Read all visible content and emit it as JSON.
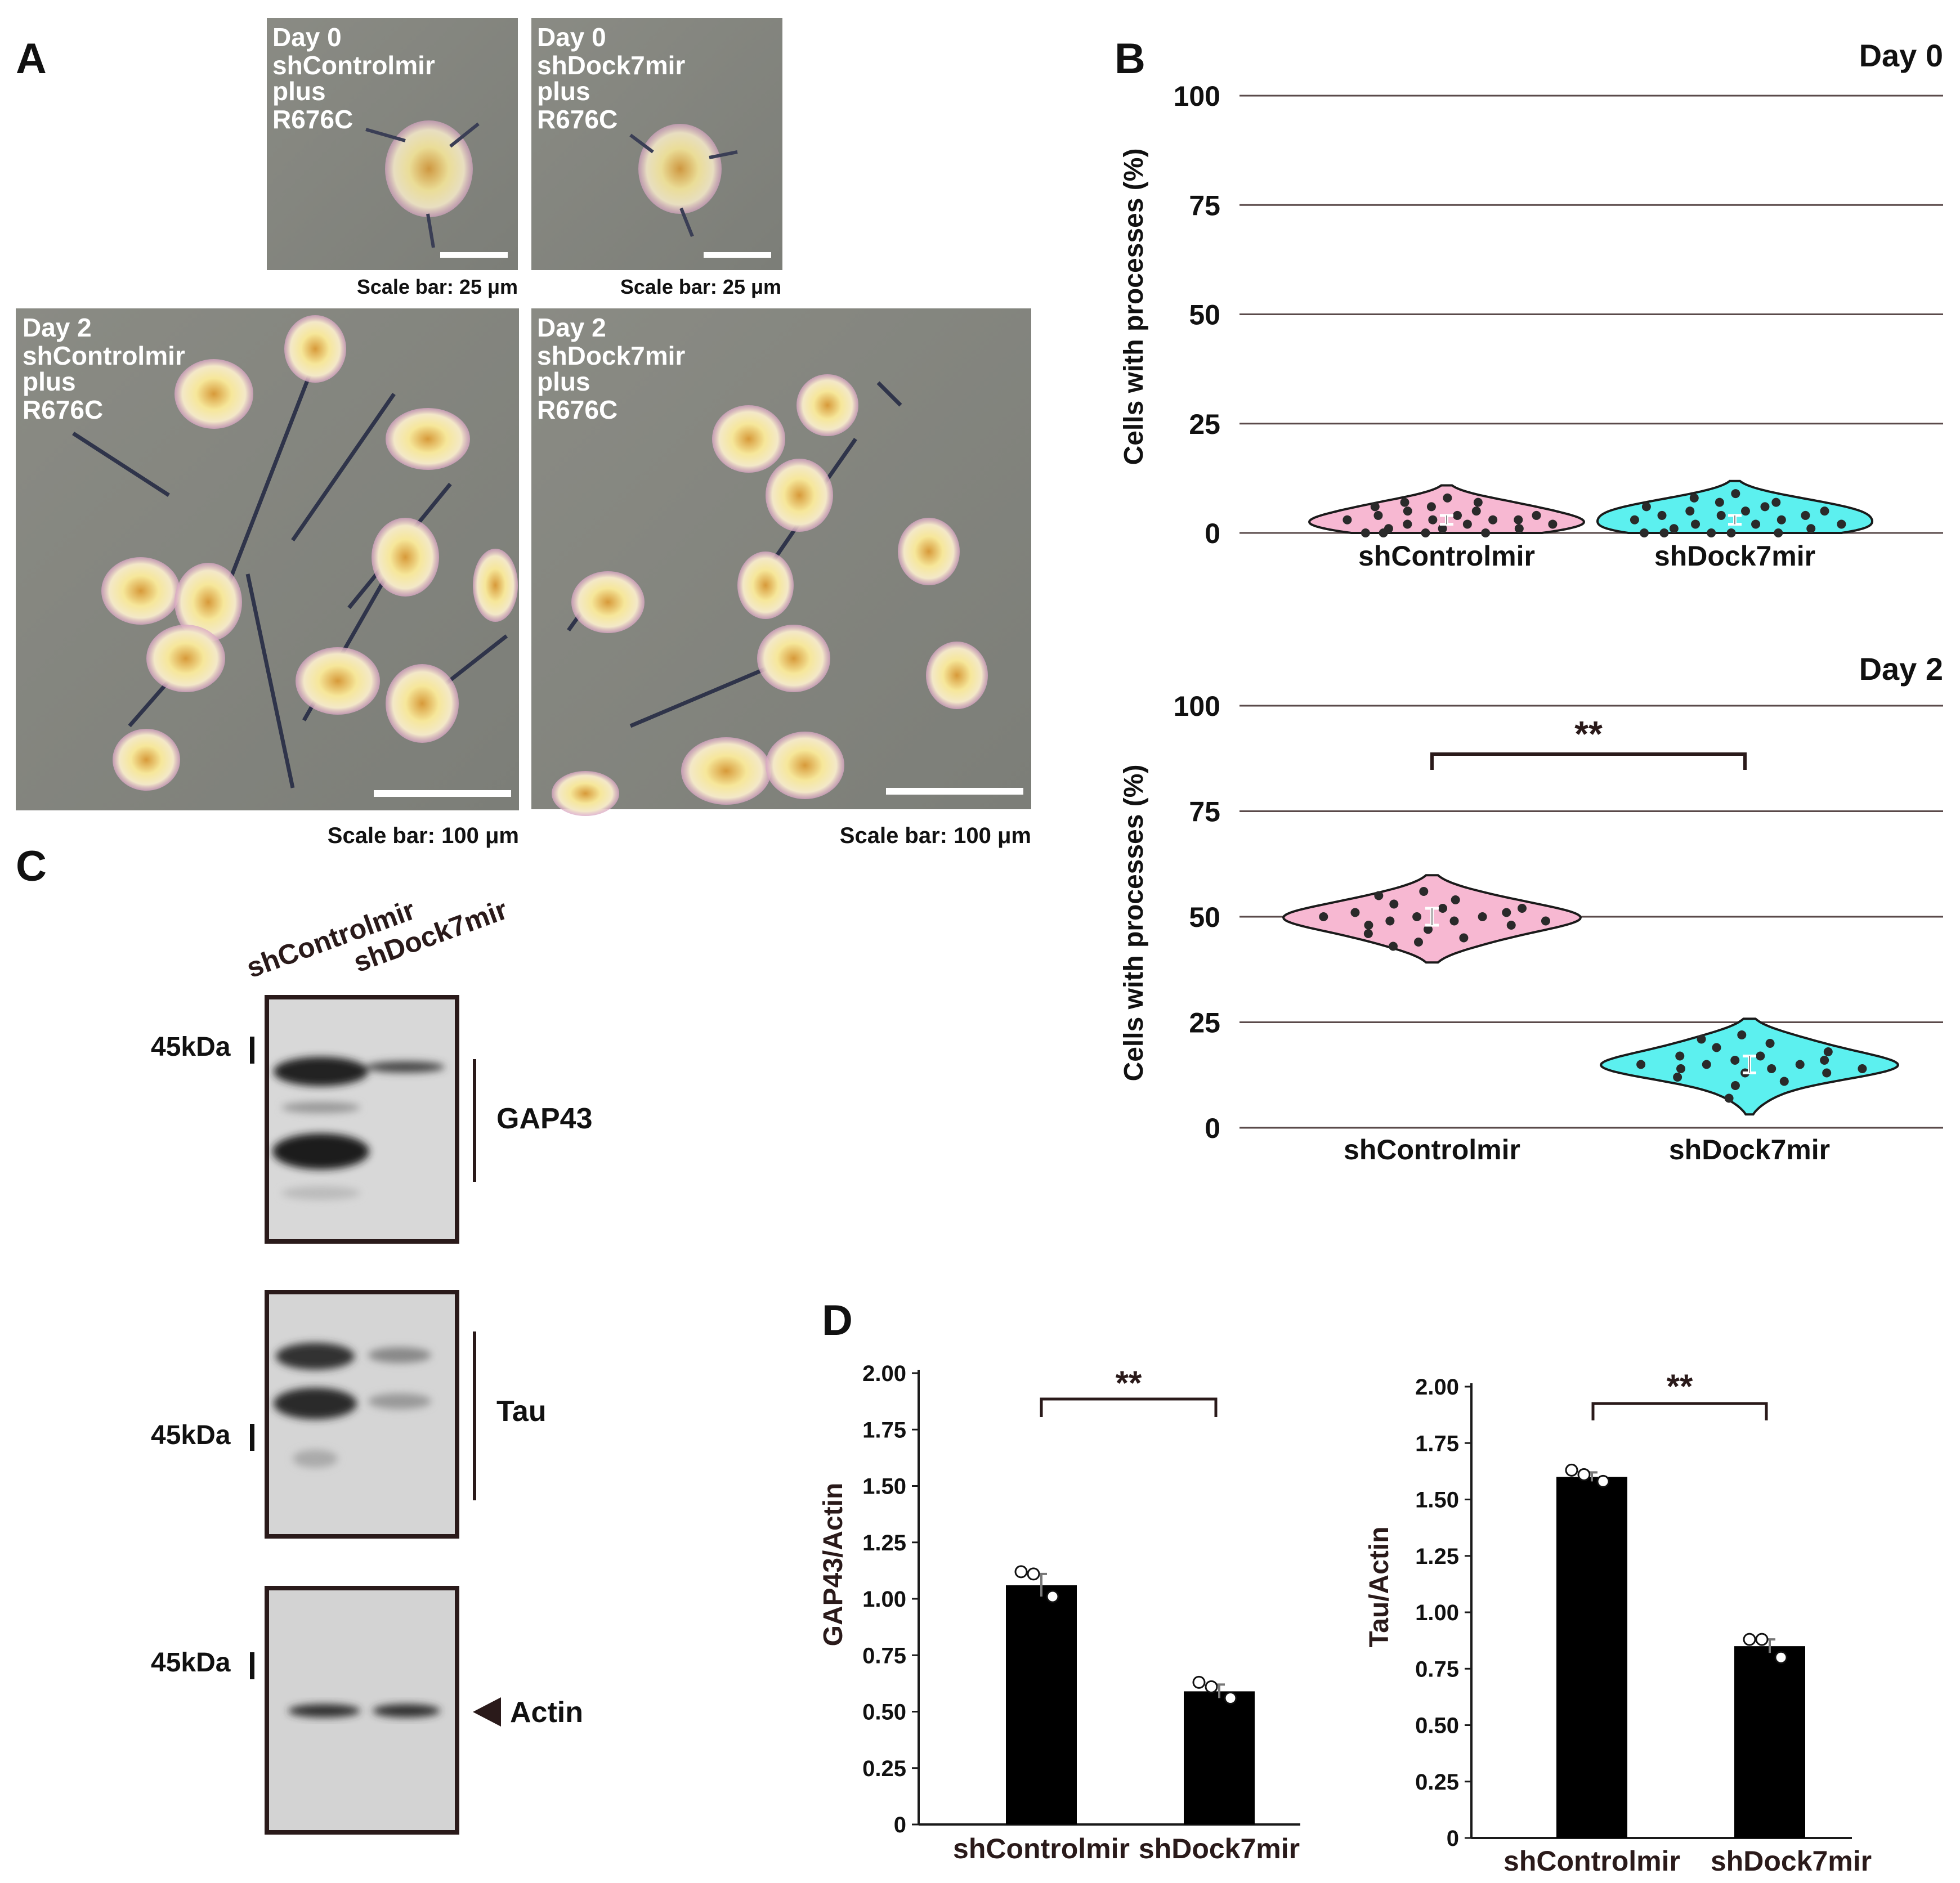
{
  "panel_a": {
    "label": "A",
    "micrographs": [
      {
        "id": "d0_ctrl",
        "lines": [
          "Day 0",
          "shControlmir",
          "plus",
          "R676C"
        ],
        "scale": "Scale bar: 25 μm"
      },
      {
        "id": "d0_dock",
        "lines": [
          "Day 0",
          "shDock7mir",
          "plus",
          "R676C"
        ],
        "scale": "Scale bar: 25 μm"
      },
      {
        "id": "d2_ctrl",
        "lines": [
          "Day 2",
          "shControlmir",
          "plus",
          "R676C"
        ],
        "scale": "Scale bar: 100 μm"
      },
      {
        "id": "d2_dock",
        "lines": [
          "Day 2",
          "shDock7mir",
          "plus",
          "R676C"
        ],
        "scale": "Scale bar: 100 μm"
      }
    ]
  },
  "panel_b": {
    "label": "B",
    "day0": {
      "title": "Day 0",
      "ylabel": "Cells with processes (%)",
      "yticks": [
        "100",
        "75",
        "50",
        "25",
        "0"
      ]
    },
    "day2": {
      "title": "Day 2",
      "ylabel": "Cells with processes (%)",
      "yticks": [
        "100",
        "75",
        "50",
        "25",
        "0"
      ],
      "significance": "**"
    },
    "groups": [
      "shControlmir",
      "shDock7mir"
    ]
  },
  "panel_c": {
    "label": "C",
    "lanes": [
      "shControlmir",
      "shDock7mir"
    ],
    "blots": [
      {
        "marker": "45kDa",
        "protein": "GAP43"
      },
      {
        "marker": "45kDa",
        "protein": "Tau"
      },
      {
        "marker": "45kDa",
        "protein": "Actin"
      }
    ]
  },
  "panel_d": {
    "label": "D",
    "gap43": {
      "ylabel": "GAP43/Actin",
      "significance": "**",
      "yticks": [
        "2.00",
        "1.75",
        "1.50",
        "1.25",
        "1.00",
        "0.75",
        "0.50",
        "0.25",
        "0"
      ]
    },
    "tau": {
      "ylabel": "Tau/Actin",
      "significance": "**",
      "yticks": [
        "2.00",
        "1.75",
        "1.50",
        "1.25",
        "1.00",
        "0.75",
        "0.50",
        "0.25",
        "0"
      ]
    }
  },
  "colors": {
    "control_violin": "#f7b8d2",
    "dock7_violin": "#5cf0ef",
    "bar": "#000000",
    "grid": "#5a4a4a"
  },
  "chart_data": [
    {
      "type": "violin",
      "title": "Day 0",
      "ylabel": "Cells with processes (%)",
      "ylim": [
        0,
        100
      ],
      "categories": [
        "shControlmir",
        "shDock7mir"
      ],
      "series": [
        {
          "name": "shControlmir",
          "values": [
            0,
            0,
            0,
            0,
            1,
            1,
            1,
            2,
            2,
            2,
            3,
            3,
            3,
            3,
            4,
            4,
            4,
            5,
            5,
            6,
            6,
            7,
            7,
            8
          ],
          "mean": 3,
          "sem": 1
        },
        {
          "name": "shDock7mir",
          "values": [
            0,
            0,
            0,
            0,
            0,
            1,
            1,
            2,
            2,
            2,
            3,
            3,
            4,
            4,
            4,
            5,
            5,
            5,
            6,
            6,
            7,
            7,
            8,
            9
          ],
          "mean": 3,
          "sem": 1
        }
      ]
    },
    {
      "type": "violin",
      "title": "Day 2",
      "ylabel": "Cells with processes (%)",
      "ylim": [
        0,
        100
      ],
      "categories": [
        "shControlmir",
        "shDock7mir"
      ],
      "series": [
        {
          "name": "shControlmir",
          "values": [
            43,
            44,
            45,
            46,
            47,
            48,
            48,
            49,
            49,
            49,
            50,
            50,
            50,
            51,
            51,
            52,
            52,
            53,
            54,
            55,
            56
          ],
          "mean": 50,
          "sem": 2
        },
        {
          "name": "shDock7mir",
          "values": [
            7,
            10,
            11,
            12,
            13,
            13,
            14,
            14,
            14,
            15,
            15,
            15,
            16,
            16,
            17,
            17,
            18,
            19,
            20,
            21,
            22
          ],
          "mean": 15,
          "sem": 2
        }
      ],
      "annotations": [
        "**"
      ]
    },
    {
      "type": "bar",
      "ylabel": "GAP43/Actin",
      "ylim": [
        0,
        2
      ],
      "categories": [
        "shControlmir",
        "shDock7mir"
      ],
      "values": [
        1.06,
        0.59
      ],
      "errors": [
        0.05,
        0.03
      ],
      "points": [
        [
          1.12,
          1.11,
          1.01
        ],
        [
          0.63,
          0.61,
          0.56
        ]
      ],
      "annotations": [
        "**"
      ]
    },
    {
      "type": "bar",
      "ylabel": "Tau/Actin",
      "ylim": [
        0,
        2
      ],
      "categories": [
        "shControlmir",
        "shDock7mir"
      ],
      "values": [
        1.6,
        0.85
      ],
      "errors": [
        0.02,
        0.03
      ],
      "points": [
        [
          1.63,
          1.61,
          1.58
        ],
        [
          0.88,
          0.88,
          0.8
        ]
      ],
      "annotations": [
        "**"
      ]
    }
  ]
}
